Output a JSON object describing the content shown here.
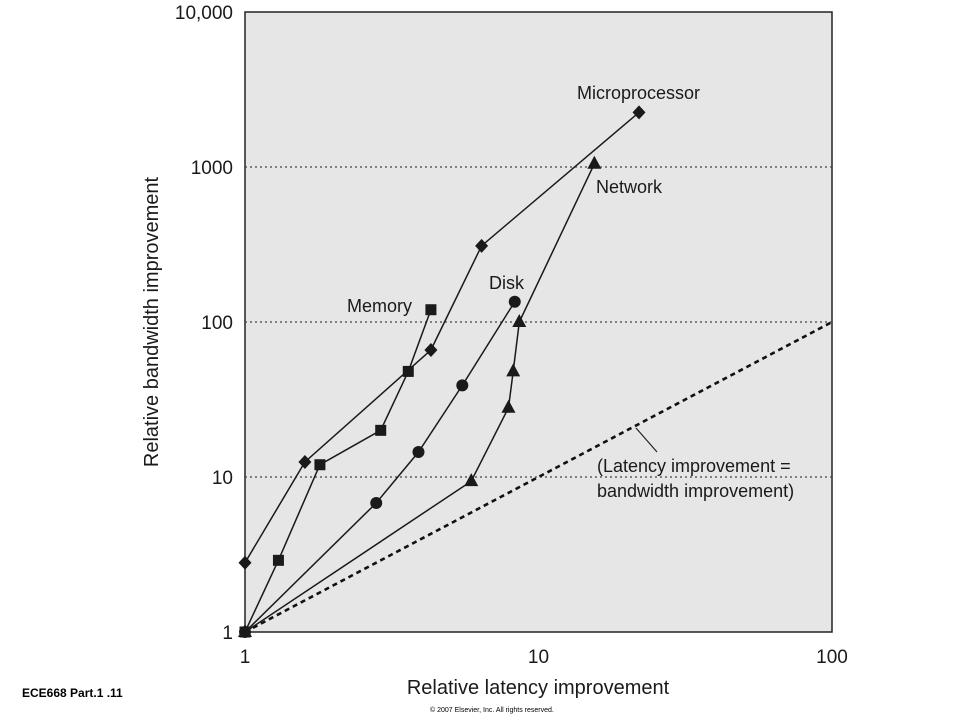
{
  "footer": {
    "slide_label": "ECE668 Part.1 .11",
    "copyright": "© 2007 Elsevier, Inc. All rights reserved."
  },
  "chart_data": {
    "type": "scatter",
    "scale": "log-log",
    "xlabel": "Relative latency improvement",
    "ylabel": "Relative bandwidth improvement",
    "xlim": [
      1,
      100
    ],
    "ylim": [
      1,
      10000
    ],
    "x_ticks": [
      {
        "value": 1,
        "label": "1"
      },
      {
        "value": 10,
        "label": "10"
      },
      {
        "value": 100,
        "label": "100"
      }
    ],
    "y_ticks": [
      {
        "value": 1,
        "label": "1"
      },
      {
        "value": 10,
        "label": "10"
      },
      {
        "value": 100,
        "label": "100"
      },
      {
        "value": 1000,
        "label": "1000"
      },
      {
        "value": 10000,
        "label": "10,000"
      }
    ],
    "grid": "dotted horizontal at 10, 100, 1000",
    "series": [
      {
        "name": "Microprocessor",
        "marker": "diamond",
        "points": [
          [
            1,
            2.8
          ],
          [
            1.6,
            12.5
          ],
          [
            4.3,
            66
          ],
          [
            6.4,
            310
          ],
          [
            22,
            2250
          ]
        ]
      },
      {
        "name": "Memory",
        "marker": "square",
        "points": [
          [
            1,
            1
          ],
          [
            1.3,
            2.9
          ],
          [
            1.8,
            12
          ],
          [
            2.9,
            20
          ],
          [
            3.6,
            48
          ],
          [
            4.3,
            120
          ]
        ]
      },
      {
        "name": "Disk",
        "marker": "circle",
        "points": [
          [
            1,
            1
          ],
          [
            2.8,
            6.8
          ],
          [
            3.9,
            14.5
          ],
          [
            5.5,
            39
          ],
          [
            8.3,
            135
          ]
        ]
      },
      {
        "name": "Network",
        "marker": "triangle",
        "points": [
          [
            1,
            1
          ],
          [
            5.9,
            9.4
          ],
          [
            7.9,
            28
          ],
          [
            8.2,
            48
          ],
          [
            8.6,
            100
          ],
          [
            15.5,
            1050
          ]
        ]
      }
    ],
    "reference_line": {
      "label": "(Latency improvement = bandwidth improvement)",
      "label_lines": [
        "(Latency improvement =",
        "bandwidth improvement)"
      ],
      "points": [
        [
          1,
          1
        ],
        [
          100,
          100
        ]
      ],
      "style": "dashed"
    }
  }
}
